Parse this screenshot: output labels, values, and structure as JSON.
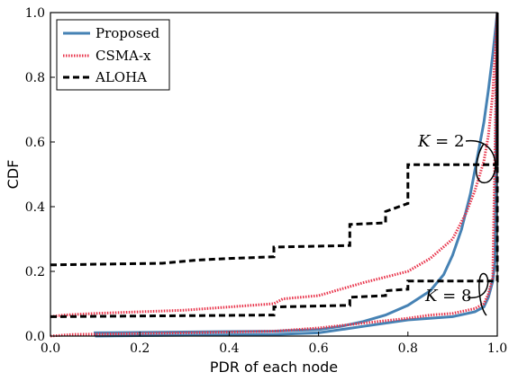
{
  "chart_data": {
    "type": "line",
    "xlabel": "PDR of each node",
    "ylabel": "CDF",
    "xlim": [
      0,
      1
    ],
    "ylim": [
      0,
      1
    ],
    "xticks": [
      "0.0",
      "0.2",
      "0.4",
      "0.6",
      "0.8",
      "1.0"
    ],
    "yticks": [
      "0.0",
      "0.2",
      "0.4",
      "0.6",
      "0.8",
      "1.0"
    ],
    "grid": false,
    "legend_position": "top-left",
    "legend": [
      {
        "name": "Proposed",
        "color": "#4682b4",
        "style": "solid"
      },
      {
        "name": "CSMA-x",
        "color": "#e8334a",
        "style": "dotted"
      },
      {
        "name": "ALOHA",
        "color": "#000000",
        "style": "dashed"
      }
    ],
    "annotations": [
      {
        "text_var": "K",
        "text_rest": " = 2"
      },
      {
        "text_var": "K",
        "text_rest": " = 8"
      }
    ],
    "series": [
      {
        "name": "Proposed",
        "k": 2,
        "color": "#4682b4",
        "style": "solid",
        "points": [
          [
            0.1,
            0
          ],
          [
            0.1,
            0.01
          ],
          [
            0.5,
            0.015
          ],
          [
            0.6,
            0.02
          ],
          [
            0.65,
            0.03
          ],
          [
            0.7,
            0.045
          ],
          [
            0.75,
            0.065
          ],
          [
            0.8,
            0.095
          ],
          [
            0.85,
            0.14
          ],
          [
            0.88,
            0.19
          ],
          [
            0.9,
            0.25
          ],
          [
            0.92,
            0.33
          ],
          [
            0.94,
            0.44
          ],
          [
            0.955,
            0.55
          ],
          [
            0.97,
            0.66
          ],
          [
            0.98,
            0.76
          ],
          [
            0.99,
            0.87
          ],
          [
            1.0,
            1.0
          ]
        ]
      },
      {
        "name": "Proposed",
        "k": 8,
        "color": "#4682b4",
        "style": "solid",
        "points": [
          [
            0.1,
            0
          ],
          [
            0.5,
            0.005
          ],
          [
            0.6,
            0.01
          ],
          [
            0.7,
            0.03
          ],
          [
            0.8,
            0.05
          ],
          [
            0.9,
            0.06
          ],
          [
            0.95,
            0.075
          ],
          [
            0.97,
            0.09
          ],
          [
            0.98,
            0.12
          ],
          [
            0.99,
            0.17
          ],
          [
            0.995,
            0.23
          ],
          [
            1.0,
            1.0
          ]
        ]
      },
      {
        "name": "CSMA-x",
        "k": 2,
        "color": "#e8334a",
        "style": "dotted",
        "points": [
          [
            0,
            0.06
          ],
          [
            0.03,
            0.065
          ],
          [
            0.1,
            0.07
          ],
          [
            0.2,
            0.075
          ],
          [
            0.3,
            0.08
          ],
          [
            0.4,
            0.09
          ],
          [
            0.5,
            0.1
          ],
          [
            0.52,
            0.115
          ],
          [
            0.6,
            0.125
          ],
          [
            0.65,
            0.145
          ],
          [
            0.7,
            0.165
          ],
          [
            0.8,
            0.2
          ],
          [
            0.85,
            0.24
          ],
          [
            0.9,
            0.3
          ],
          [
            0.93,
            0.38
          ],
          [
            0.95,
            0.45
          ],
          [
            0.97,
            0.54
          ],
          [
            0.98,
            0.62
          ],
          [
            0.99,
            0.75
          ],
          [
            1.0,
            1.0
          ]
        ]
      },
      {
        "name": "CSMA-x",
        "k": 8,
        "color": "#e8334a",
        "style": "dotted",
        "points": [
          [
            0,
            0
          ],
          [
            0.05,
            0.005
          ],
          [
            0.3,
            0.01
          ],
          [
            0.5,
            0.015
          ],
          [
            0.6,
            0.025
          ],
          [
            0.7,
            0.04
          ],
          [
            0.8,
            0.055
          ],
          [
            0.85,
            0.065
          ],
          [
            0.9,
            0.07
          ],
          [
            0.95,
            0.085
          ],
          [
            0.97,
            0.1
          ],
          [
            0.98,
            0.13
          ],
          [
            0.99,
            0.18
          ],
          [
            1.0,
            1.0
          ]
        ]
      },
      {
        "name": "ALOHA",
        "k": 2,
        "color": "#000000",
        "style": "dashed",
        "points": [
          [
            0,
            0.22
          ],
          [
            0.25,
            0.225
          ],
          [
            0.33,
            0.235
          ],
          [
            0.4,
            0.24
          ],
          [
            0.5,
            0.245
          ],
          [
            0.5,
            0.275
          ],
          [
            0.67,
            0.28
          ],
          [
            0.67,
            0.345
          ],
          [
            0.75,
            0.35
          ],
          [
            0.75,
            0.385
          ],
          [
            0.8,
            0.41
          ],
          [
            0.8,
            0.46
          ],
          [
            0.8,
            0.53
          ],
          [
            1.0,
            0.53
          ],
          [
            1.0,
            1.0
          ]
        ]
      },
      {
        "name": "ALOHA",
        "k": 8,
        "color": "#000000",
        "style": "dashed",
        "points": [
          [
            0,
            0.06
          ],
          [
            0.5,
            0.065
          ],
          [
            0.5,
            0.09
          ],
          [
            0.67,
            0.095
          ],
          [
            0.67,
            0.12
          ],
          [
            0.75,
            0.125
          ],
          [
            0.75,
            0.14
          ],
          [
            0.8,
            0.145
          ],
          [
            0.8,
            0.17
          ],
          [
            1.0,
            0.17
          ],
          [
            1.0,
            1.0
          ]
        ]
      }
    ]
  }
}
